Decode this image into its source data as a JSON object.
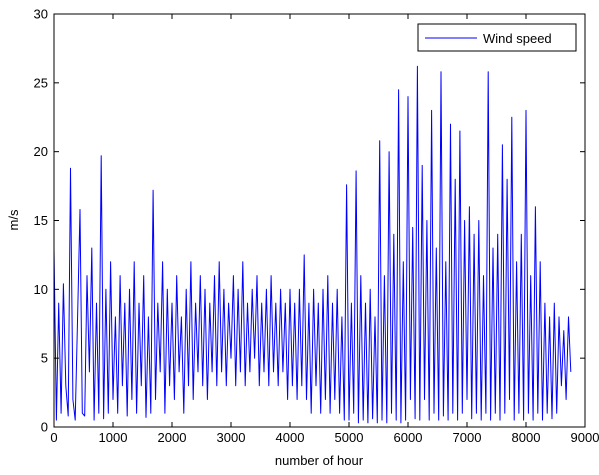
{
  "chart_data": {
    "type": "line",
    "title": "",
    "xlabel": "number of hour",
    "ylabel": "m/s",
    "xlim": [
      0,
      9000
    ],
    "ylim": [
      0,
      30
    ],
    "xticks": [
      "0",
      "1000",
      "2000",
      "3000",
      "4000",
      "5000",
      "6000",
      "7000",
      "8000",
      "9000"
    ],
    "yticks": [
      "0",
      "5",
      "10",
      "15",
      "20",
      "25",
      "30"
    ],
    "grid": false,
    "legend_position": "top-right",
    "series": [
      {
        "name": "Wind speed",
        "color": "#0000ff",
        "x": [
          0,
          40,
          80,
          120,
          160,
          200,
          240,
          280,
          320,
          360,
          400,
          440,
          480,
          520,
          560,
          600,
          640,
          680,
          720,
          760,
          800,
          840,
          880,
          920,
          960,
          1000,
          1040,
          1080,
          1120,
          1160,
          1200,
          1240,
          1280,
          1320,
          1360,
          1400,
          1440,
          1480,
          1520,
          1560,
          1600,
          1640,
          1680,
          1720,
          1760,
          1800,
          1840,
          1880,
          1920,
          1960,
          2000,
          2040,
          2080,
          2120,
          2160,
          2200,
          2240,
          2280,
          2320,
          2360,
          2400,
          2440,
          2480,
          2520,
          2560,
          2600,
          2640,
          2680,
          2720,
          2760,
          2800,
          2840,
          2880,
          2920,
          2960,
          3000,
          3040,
          3080,
          3120,
          3160,
          3200,
          3240,
          3280,
          3320,
          3360,
          3400,
          3440,
          3480,
          3520,
          3560,
          3600,
          3640,
          3680,
          3720,
          3760,
          3800,
          3840,
          3880,
          3920,
          3960,
          4000,
          4040,
          4080,
          4120,
          4160,
          4200,
          4240,
          4280,
          4320,
          4360,
          4400,
          4440,
          4480,
          4520,
          4560,
          4600,
          4640,
          4680,
          4720,
          4760,
          4800,
          4840,
          4880,
          4920,
          4960,
          5000,
          5040,
          5080,
          5120,
          5160,
          5200,
          5240,
          5280,
          5320,
          5360,
          5400,
          5440,
          5480,
          5520,
          5560,
          5600,
          5640,
          5680,
          5720,
          5760,
          5800,
          5840,
          5880,
          5920,
          5960,
          6000,
          6040,
          6080,
          6120,
          6160,
          6200,
          6240,
          6280,
          6320,
          6360,
          6400,
          6440,
          6480,
          6520,
          6560,
          6600,
          6640,
          6680,
          6720,
          6760,
          6800,
          6840,
          6880,
          6920,
          6960,
          7000,
          7040,
          7080,
          7120,
          7160,
          7200,
          7240,
          7280,
          7320,
          7360,
          7400,
          7440,
          7480,
          7520,
          7560,
          7600,
          7640,
          7680,
          7720,
          7760,
          7800,
          7840,
          7880,
          7920,
          7960,
          8000,
          8040,
          8080,
          8120,
          8160,
          8200,
          8240,
          8280,
          8320,
          8360,
          8400,
          8440,
          8480,
          8520,
          8560,
          8600,
          8640,
          8680,
          8720,
          8760
        ],
        "y": [
          13,
          0.5,
          9,
          1,
          10.4,
          3,
          0.8,
          18.8,
          2,
          0.5,
          8,
          15.8,
          1,
          0.8,
          11,
          4,
          13,
          0.5,
          9,
          1,
          19.7,
          0.6,
          10,
          1,
          12,
          2,
          8,
          1,
          11,
          3,
          9,
          0.8,
          10,
          2,
          12,
          1,
          9,
          3,
          11,
          0.7,
          8,
          1,
          17.2,
          2,
          9,
          4,
          12,
          1,
          10,
          3,
          9,
          2,
          11,
          4,
          8,
          1,
          10,
          3,
          12,
          2,
          9,
          4,
          11,
          3,
          10,
          2,
          9,
          4,
          11,
          3,
          12,
          4,
          10,
          3,
          9,
          5,
          11,
          3,
          10,
          4,
          12,
          3,
          9,
          4,
          10,
          5,
          11,
          3,
          9,
          4,
          10,
          3,
          11,
          4,
          9,
          3,
          10,
          4,
          9,
          2,
          10,
          3,
          9,
          2,
          10,
          3,
          12.5,
          2,
          9,
          1,
          10,
          3,
          9,
          1,
          10,
          2,
          11,
          1,
          9,
          2,
          10,
          1,
          8,
          0.5,
          17.6,
          0.5,
          9,
          1,
          18.6,
          0.3,
          11,
          0.5,
          9,
          0.3,
          10,
          0.6,
          8,
          0.3,
          20.8,
          0.5,
          11,
          0.3,
          20,
          1,
          14,
          0.5,
          24.5,
          0.3,
          12,
          0.5,
          24,
          2,
          14.5,
          0.6,
          26.2,
          0.5,
          19,
          2,
          15,
          0.5,
          23,
          1,
          13,
          0.5,
          25.8,
          0.8,
          12,
          0.5,
          22,
          1,
          18,
          0.5,
          21.5,
          1,
          15,
          2,
          16,
          0.6,
          14,
          1,
          15,
          0.5,
          11,
          1,
          25.8,
          0.5,
          13,
          1,
          14,
          0.5,
          20.5,
          1,
          18,
          2,
          22.5,
          0.5,
          12,
          1,
          14,
          0.5,
          23,
          1,
          11,
          0.5,
          16,
          1,
          12,
          0.5,
          9,
          1,
          8,
          0.6,
          9,
          1,
          8,
          3,
          7,
          2,
          8,
          4
        ]
      }
    ]
  }
}
